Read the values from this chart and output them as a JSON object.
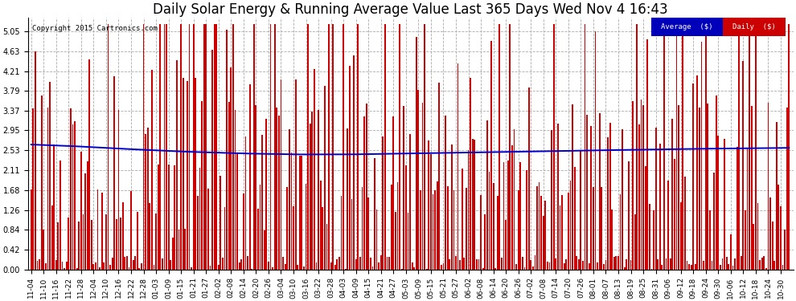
{
  "title": "Daily Solar Energy & Running Average Value Last 365 Days Wed Nov 4 16:43",
  "copyright": "Copyright 2015 Cartronics.com",
  "legend_label_avg": "Average  ($)",
  "legend_label_daily": "Daily  ($)",
  "legend_color_avg": "#0000bb",
  "legend_color_daily": "#cc0000",
  "ylabel_values": [
    0.0,
    0.42,
    0.84,
    1.26,
    1.68,
    2.11,
    2.53,
    2.95,
    3.37,
    3.79,
    4.21,
    4.63,
    5.05
  ],
  "ylim": [
    0.0,
    5.35
  ],
  "bar_color": "#cc0000",
  "line_color": "#0000cc",
  "bg_color": "#ffffff",
  "grid_color": "#aaaaaa",
  "title_fontsize": 12,
  "tick_fontsize": 7,
  "n_bars": 365,
  "avg_curve_x": [
    0,
    0.05,
    0.12,
    0.2,
    0.28,
    0.35,
    0.42,
    0.5,
    0.58,
    0.65,
    0.72,
    0.8,
    0.88,
    0.95,
    1.0
  ],
  "avg_curve_y": [
    2.65,
    2.62,
    2.56,
    2.5,
    2.46,
    2.44,
    2.44,
    2.46,
    2.48,
    2.5,
    2.52,
    2.54,
    2.56,
    2.57,
    2.58
  ],
  "x_tick_positions": [
    0,
    6,
    12,
    18,
    24,
    30,
    36,
    42,
    48,
    54,
    60,
    66,
    72,
    78,
    84,
    90,
    96,
    102,
    108,
    114,
    120,
    126,
    132,
    138,
    144,
    150,
    156,
    162,
    168,
    174,
    180,
    186,
    192,
    198,
    204,
    210,
    216,
    222,
    228,
    234,
    240,
    246,
    252,
    258,
    264,
    270,
    276,
    282,
    288,
    294,
    300,
    306,
    312,
    318,
    324,
    330,
    336,
    342,
    348,
    354,
    360
  ],
  "x_tick_labels": [
    "11-04",
    "11-10",
    "11-16",
    "11-22",
    "11-28",
    "12-04",
    "12-10",
    "12-16",
    "12-22",
    "12-28",
    "01-03",
    "01-09",
    "01-15",
    "01-21",
    "01-27",
    "02-02",
    "02-08",
    "02-14",
    "02-20",
    "02-26",
    "03-04",
    "03-10",
    "03-16",
    "03-22",
    "03-28",
    "04-03",
    "04-09",
    "04-15",
    "04-21",
    "04-27",
    "05-03",
    "05-09",
    "05-15",
    "05-21",
    "05-27",
    "06-02",
    "06-08",
    "06-14",
    "06-20",
    "06-26",
    "07-02",
    "07-08",
    "07-14",
    "07-20",
    "07-26",
    "08-01",
    "08-07",
    "08-13",
    "08-19",
    "08-25",
    "08-31",
    "09-06",
    "09-12",
    "09-18",
    "09-24",
    "09-30",
    "10-06",
    "10-12",
    "10-18",
    "10-24",
    "10-30"
  ],
  "monthly_bases": {
    "nov": 1.8,
    "dec": 0.8,
    "jan": 0.9,
    "feb": 1.5,
    "mar": 2.5,
    "apr": 2.8,
    "may": 3.0,
    "jun": 3.0,
    "jul": 2.8,
    "aug": 2.8,
    "sep": 2.4,
    "oct": 2.0
  },
  "monthly_noise_scale": {
    "nov": 1.2,
    "dec": 1.8,
    "jan": 1.9,
    "feb": 1.6,
    "mar": 1.4,
    "apr": 1.3,
    "may": 1.2,
    "jun": 1.2,
    "jul": 1.3,
    "aug": 1.3,
    "sep": 1.2,
    "oct": 1.2
  }
}
